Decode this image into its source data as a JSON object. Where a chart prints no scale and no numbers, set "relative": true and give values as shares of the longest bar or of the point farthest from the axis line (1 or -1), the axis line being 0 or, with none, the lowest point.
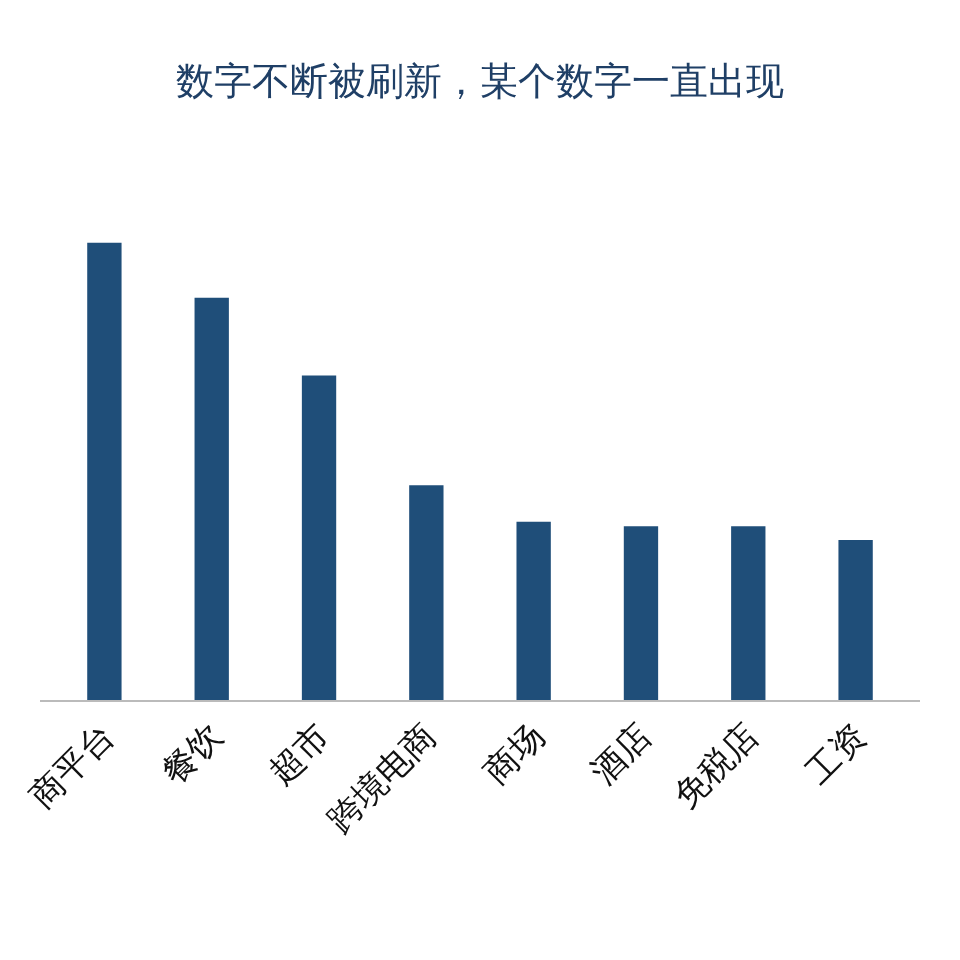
{
  "chart_data": {
    "type": "bar",
    "title": "数字不断被刷新，某个数字一直出现",
    "relative": true,
    "categories": [
      "商平台",
      "餐饮",
      "超市",
      "跨境电商",
      "商场",
      "酒店",
      "免税店",
      "工资"
    ],
    "color": "#1f4e79",
    "values": [
      1,
      0.88,
      0.71,
      0.47,
      0.39,
      0.38,
      0.38,
      0.35
    ]
  }
}
